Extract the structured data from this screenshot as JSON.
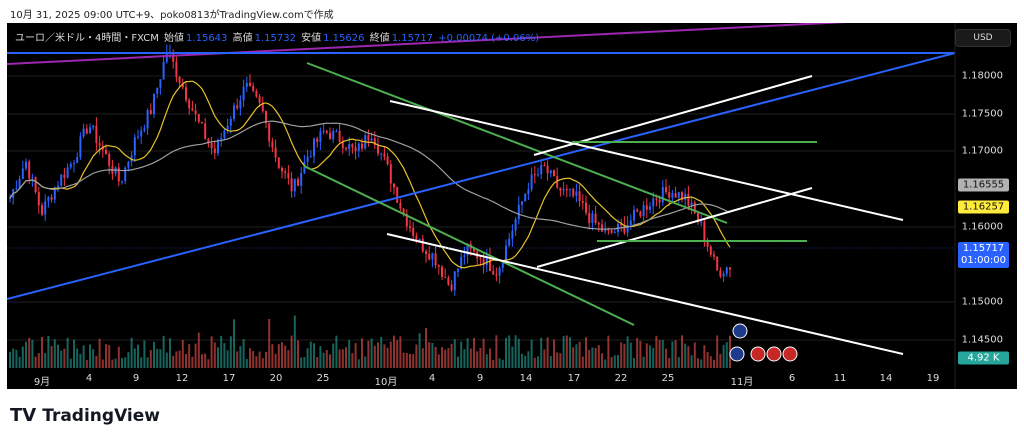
{
  "caption": "10月 31, 2025 09:00 UTC+9、poko0813がTradingView.comで作成",
  "legend": {
    "symbol": "ユーロ／米ドル・4時間・FXCM",
    "open_label": "始値",
    "open": "1.15643",
    "high_label": "高値",
    "high": "1.15732",
    "low_label": "安値",
    "low": "1.15626",
    "close_label": "終値",
    "close": "1.15717",
    "change": "+0.00074 (+0.06%)"
  },
  "currency_button": "USD",
  "price_axis": [
    "1.18000",
    "1.17500",
    "1.17000",
    "1.16000",
    "1.15000",
    "1.14500"
  ],
  "tags": {
    "ma_gray": "1.16555",
    "ma_yellow": "1.16257",
    "last_price": "1.15717",
    "countdown": "01:00:00",
    "volume": "4.92 K"
  },
  "time_axis": [
    "9月",
    "4",
    "9",
    "12",
    "17",
    "20",
    "25",
    "10月",
    "4",
    "9",
    "14",
    "17",
    "22",
    "25",
    "11月",
    "6",
    "11",
    "14",
    "19"
  ],
  "colors": {
    "up": "#2962ff",
    "down": "#f23645",
    "ma_fast": "#e6c229",
    "ma_slow": "#9e9e9e",
    "trend_blue": "#2962ff",
    "trend_purple": "#9c27b0",
    "channel_green": "#4caf50",
    "channel_white": "#ffffff",
    "volume_up": "#26a69a",
    "volume_down": "#ef5350"
  },
  "footer": {
    "brand": "TradingView"
  },
  "chart_data": {
    "type": "candlestick",
    "ylim": [
      1.1415,
      1.1885
    ],
    "approx_closes": [
      1.166,
      1.171,
      1.164,
      1.168,
      1.171,
      1.176,
      1.172,
      1.168,
      1.174,
      1.178,
      1.186,
      1.181,
      1.176,
      1.172,
      1.177,
      1.181,
      1.178,
      1.171,
      1.167,
      1.172,
      1.175,
      1.174,
      1.172,
      1.175,
      1.17,
      1.164,
      1.16,
      1.158,
      1.154,
      1.159,
      1.158,
      1.156,
      1.162,
      1.168,
      1.17,
      1.167,
      1.166,
      1.163,
      1.161,
      1.162,
      1.164,
      1.166,
      1.167,
      1.166,
      1.162,
      1.156,
      1.157
    ]
  }
}
